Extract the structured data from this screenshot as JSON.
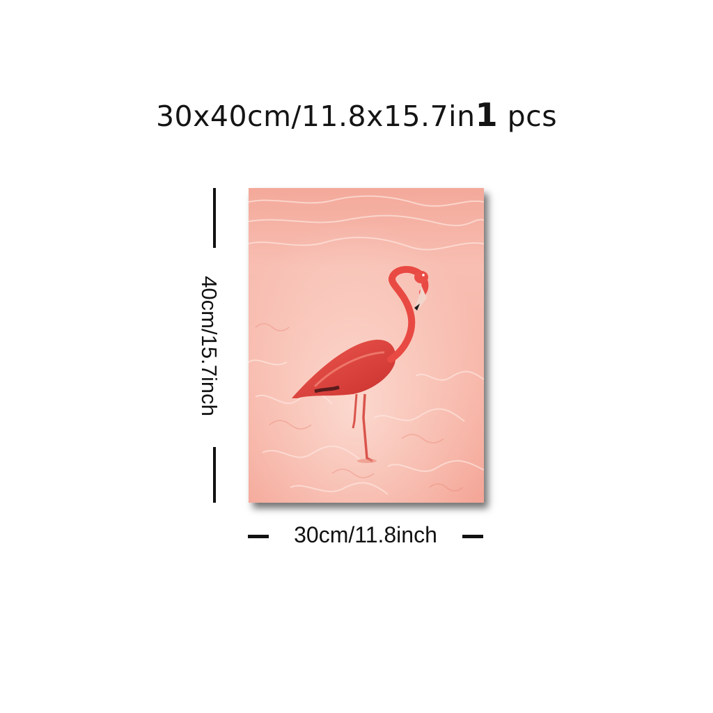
{
  "header": {
    "size_text": "30x40cm/11.8x15.7in",
    "quantity": "1",
    "unit": "pcs"
  },
  "dimensions": {
    "height_label": "40cm/15.7inch",
    "width_label": "30cm/11.8inch"
  },
  "artwork": {
    "subject": "flamingo-in-pink-water",
    "colors": {
      "water_light": "#fbd3c8",
      "water_mid": "#f4a596",
      "water_deep": "#ef9283",
      "flamingo": "#e4453e",
      "flamingo_dark": "#b8262a",
      "beak_tip": "#1a1a1a",
      "frame_shadow": "#222222"
    }
  }
}
